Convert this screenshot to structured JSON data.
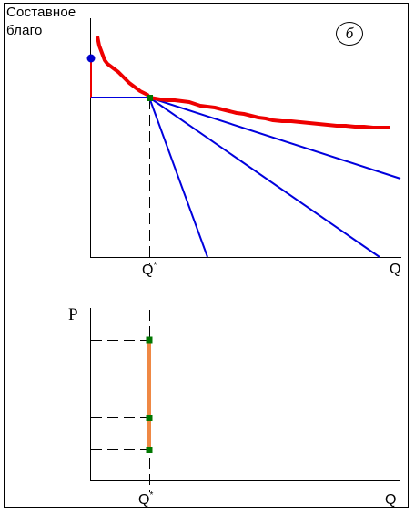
{
  "top_panel": {
    "y_axis_label_line1": "Составное",
    "y_axis_label_line2": "благо",
    "panel_label": "б",
    "x_axis_label": "Q",
    "equilibrium_label": "Q",
    "equilibrium_sup": "*"
  },
  "bottom_panel": {
    "y_axis_label": "P",
    "x_axis_label": "Q",
    "equilibrium_label": "Q",
    "equilibrium_sup": "*"
  },
  "colors": {
    "indifference_curve": "#ee0000",
    "budget_lines": "#0000dd",
    "endowment_point": "#0000cc",
    "tangency_point": "#007700",
    "price_range": "#ef8844",
    "axes": "#000000"
  }
}
